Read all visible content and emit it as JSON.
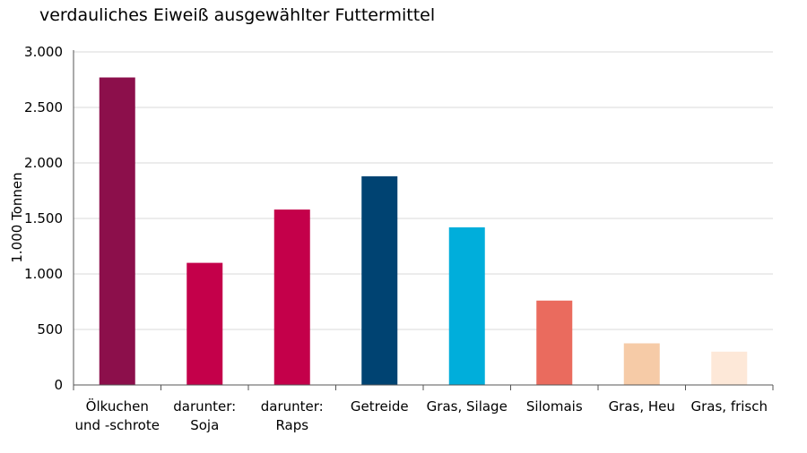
{
  "subtitle": "verdauliches Eiweiß ausgewählter Futtermittel",
  "footnote": "",
  "chart_data": {
    "type": "bar",
    "title": "",
    "subtitle": "verdauliches Eiweiß ausgewählter Futtermittel",
    "xlabel": "",
    "ylabel": "1.000 Tonnen",
    "ylim": [
      0,
      3000
    ],
    "yticks": [
      0,
      500,
      1000,
      1500,
      2000,
      2500,
      3000
    ],
    "ytick_labels": [
      "0",
      "500",
      "1.000",
      "1.500",
      "2.000",
      "2.500",
      "3.000"
    ],
    "grid": true,
    "categories": [
      [
        "Ölkuchen",
        "und -schrote"
      ],
      [
        "darunter:",
        "Soja"
      ],
      [
        "darunter:",
        "Raps"
      ],
      [
        "Getreide"
      ],
      [
        "Gras, Silage"
      ],
      [
        "Silomais"
      ],
      [
        "Gras, Heu"
      ],
      [
        "Gras, frisch"
      ]
    ],
    "values": [
      2770,
      1100,
      1580,
      1880,
      1420,
      760,
      375,
      300
    ],
    "colors": [
      "#8c0f4b",
      "#c4004a",
      "#c4004a",
      "#004372",
      "#00aedb",
      "#ea6b5e",
      "#f6cba7",
      "#fde8d8"
    ]
  }
}
